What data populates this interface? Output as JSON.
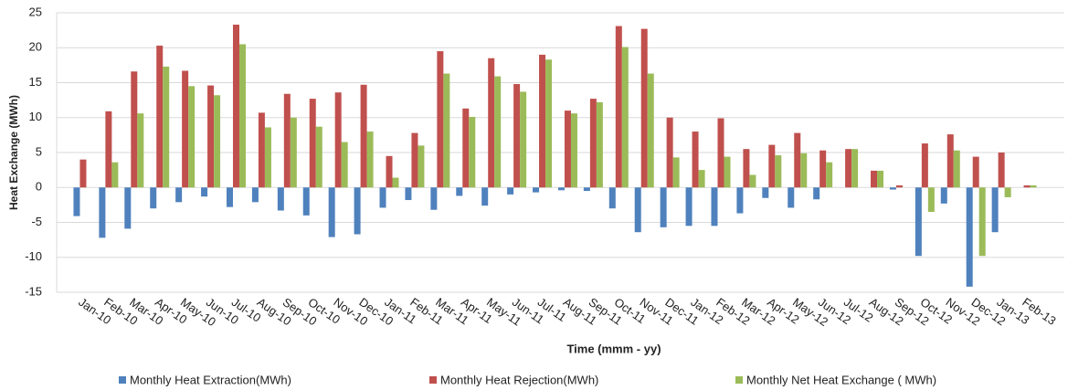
{
  "chart_data": {
    "type": "bar",
    "x_label": "Time (mmm - yy)",
    "y_label": "Heat Exchange (MWh)",
    "categories": [
      "Jan-10",
      "Feb-10",
      "Mar-10",
      "Apr-10",
      "May-10",
      "Jun-10",
      "Jul-10",
      "Aug-10",
      "Sep-10",
      "Oct-10",
      "Nov-10",
      "Dec-10",
      "Jan-11",
      "Feb-11",
      "Mar-11",
      "Apr-11",
      "May-11",
      "Jun-11",
      "Jul-11",
      "Aug-11",
      "Sep-11",
      "Oct-11",
      "Nov-11",
      "Dec-11",
      "Jan-12",
      "Feb-12",
      "Mar-12",
      "Apr-12",
      "May-12",
      "Jun-12",
      "Jul-12",
      "Aug-12",
      "Sep-12",
      "Oct-12",
      "Nov-12",
      "Dec-12",
      "Jan-13",
      "Feb-13"
    ],
    "series": [
      {
        "name": "Monthly Heat Extraction(MWh)",
        "color": "#4f81bd",
        "values": [
          -4.1,
          -7.2,
          -5.9,
          -3.0,
          -2.1,
          -1.3,
          -2.8,
          -2.1,
          -3.3,
          -4.0,
          -7.1,
          -6.7,
          -2.9,
          -1.8,
          -3.2,
          -1.2,
          -2.6,
          -1.0,
          -0.7,
          -0.4,
          -0.5,
          -3.0,
          -6.4,
          -5.7,
          -5.5,
          -5.5,
          -3.7,
          -1.5,
          -2.9,
          -1.7,
          0,
          0,
          -0.3,
          -9.8,
          -2.3,
          -14.2,
          -6.4,
          0
        ]
      },
      {
        "name": "Monthly Heat Rejection(MWh)",
        "color": "#c0504d",
        "values": [
          4.0,
          10.9,
          16.6,
          20.3,
          16.7,
          14.6,
          23.3,
          10.7,
          13.4,
          12.7,
          13.6,
          14.7,
          4.5,
          7.8,
          19.5,
          11.3,
          18.5,
          14.8,
          19.0,
          11.0,
          12.7,
          23.1,
          22.7,
          10.0,
          8.0,
          9.9,
          5.5,
          6.1,
          7.8,
          5.3,
          5.5,
          2.4,
          0.3,
          6.3,
          7.6,
          4.4,
          5.0,
          0.3
        ]
      },
      {
        "name": "Monthly Net Heat Exchange ( MWh)",
        "color": "#9bbb59",
        "values": [
          0,
          3.6,
          10.6,
          17.3,
          14.5,
          13.2,
          20.5,
          8.6,
          10.0,
          8.7,
          6.5,
          8.0,
          1.4,
          6.0,
          16.3,
          10.1,
          15.9,
          13.7,
          18.3,
          10.6,
          12.2,
          20.1,
          16.3,
          4.3,
          2.5,
          4.4,
          1.8,
          4.6,
          4.9,
          3.6,
          5.5,
          2.4,
          0,
          -3.5,
          5.3,
          -9.8,
          -1.4,
          0.3
        ]
      }
    ],
    "ylim": [
      -15,
      25
    ],
    "yticks": [
      -15,
      -10,
      -5,
      0,
      5,
      10,
      15,
      20,
      25
    ],
    "grid": true
  }
}
